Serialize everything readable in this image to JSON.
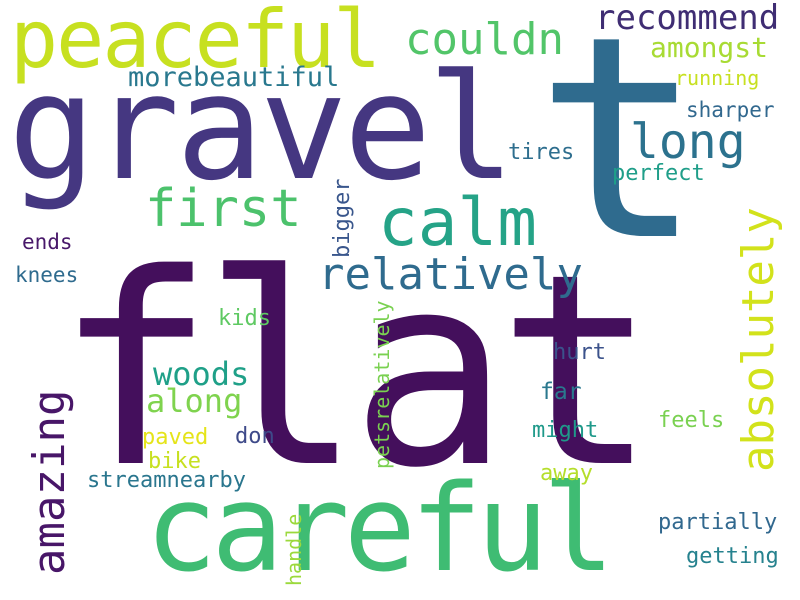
{
  "words": [
    {
      "id": "flat",
      "text": "flat",
      "color": "#440f5c"
    },
    {
      "id": "t",
      "text": "t",
      "color": "#2f6b8e"
    },
    {
      "id": "gravel",
      "text": "gravel",
      "color": "#453781"
    },
    {
      "id": "careful",
      "text": "careful",
      "color": "#3fbc73"
    },
    {
      "id": "peaceful",
      "text": "peaceful",
      "color": "#c7e020"
    },
    {
      "id": "calm",
      "text": "calm",
      "color": "#25a387"
    },
    {
      "id": "relatively",
      "text": "relatively",
      "color": "#2f6b8e"
    },
    {
      "id": "first",
      "text": "first",
      "color": "#4cc26c"
    },
    {
      "id": "long",
      "text": "long",
      "color": "#2c728e"
    },
    {
      "id": "couldn",
      "text": "couldn",
      "color": "#52c569"
    },
    {
      "id": "recommend",
      "text": "recommend",
      "color": "#3f2d73"
    },
    {
      "id": "amongst",
      "text": "amongst",
      "color": "#a8db34"
    },
    {
      "id": "morebeautiful",
      "text": "morebeautiful",
      "color": "#29788e"
    },
    {
      "id": "running",
      "text": "running",
      "color": "#c7e020"
    },
    {
      "id": "sharper",
      "text": "sharper",
      "color": "#31688e"
    },
    {
      "id": "tires",
      "text": "tires",
      "color": "#2e6e8e"
    },
    {
      "id": "perfect",
      "text": "perfect",
      "color": "#1f9e89"
    },
    {
      "id": "absolutely",
      "text": "absolutely",
      "color": "#d2e21b"
    },
    {
      "id": "amazing",
      "text": "amazing",
      "color": "#481668"
    },
    {
      "id": "woods",
      "text": "woods",
      "color": "#1fa088"
    },
    {
      "id": "along",
      "text": "along",
      "color": "#7fd34e"
    },
    {
      "id": "ends",
      "text": "ends",
      "color": "#48186a"
    },
    {
      "id": "knees",
      "text": "knees",
      "color": "#2f6b8e"
    },
    {
      "id": "bigger",
      "text": "bigger",
      "color": "#39568c"
    },
    {
      "id": "kids",
      "text": "kids",
      "color": "#5ec962"
    },
    {
      "id": "petsrelatively",
      "text": "petsrelatively",
      "color": "#7ad151"
    },
    {
      "id": "hurt",
      "text": "hurt",
      "color": "#3b528b"
    },
    {
      "id": "far",
      "text": "far",
      "color": "#2a788e"
    },
    {
      "id": "might",
      "text": "might",
      "color": "#1f998a"
    },
    {
      "id": "feels",
      "text": "feels",
      "color": "#7ad151"
    },
    {
      "id": "paved",
      "text": "paved",
      "color": "#e5e419"
    },
    {
      "id": "don",
      "text": "don",
      "color": "#3e4a89"
    },
    {
      "id": "bike",
      "text": "bike",
      "color": "#c7e020"
    },
    {
      "id": "streamnearby",
      "text": "streamnearby",
      "color": "#2a768e"
    },
    {
      "id": "away",
      "text": "away",
      "color": "#b5de2b"
    },
    {
      "id": "handle",
      "text": "handle",
      "color": "#9bd93c"
    },
    {
      "id": "partially",
      "text": "partially",
      "color": "#31688e"
    },
    {
      "id": "getting",
      "text": "getting",
      "color": "#26828e"
    }
  ]
}
